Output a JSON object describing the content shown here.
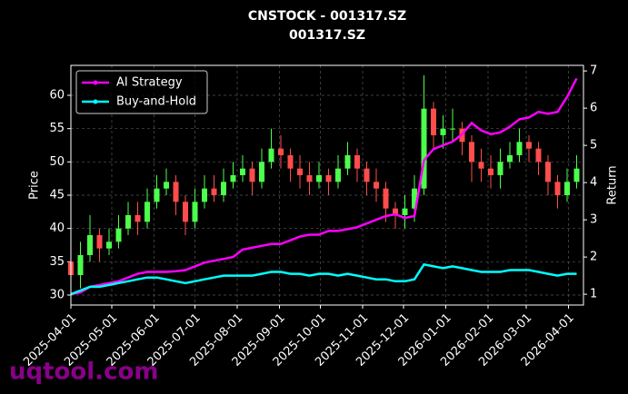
{
  "chart_data": {
    "type": "candlestick",
    "title": "CNSTOCK - 001317.SZ",
    "subtitle": "001317.SZ",
    "ylabel": "Price",
    "y2label": "Return",
    "watermark": "uqtool.com",
    "x": [
      "2025-04-01",
      "2025-04-08",
      "2025-04-15",
      "2025-04-22",
      "2025-04-29",
      "2025-05-06",
      "2025-05-13",
      "2025-05-20",
      "2025-05-27",
      "2025-06-03",
      "2025-06-10",
      "2025-06-17",
      "2025-06-24",
      "2025-07-01",
      "2025-07-08",
      "2025-07-15",
      "2025-07-22",
      "2025-07-29",
      "2025-08-05",
      "2025-08-12",
      "2025-08-19",
      "2025-08-26",
      "2025-09-02",
      "2025-09-09",
      "2025-09-16",
      "2025-09-23",
      "2025-09-30",
      "2025-10-07",
      "2025-10-14",
      "2025-10-21",
      "2025-10-28",
      "2025-11-04",
      "2025-11-11",
      "2025-11-18",
      "2025-11-25",
      "2025-12-02",
      "2025-12-09",
      "2025-12-16",
      "2025-12-23",
      "2025-12-30",
      "2026-01-06",
      "2026-01-13",
      "2026-01-20",
      "2026-01-27",
      "2026-02-03",
      "2026-02-10",
      "2026-02-17",
      "2026-02-24",
      "2026-03-03",
      "2026-03-10",
      "2026-03-17",
      "2026-03-24",
      "2026-03-31",
      "2026-04-07"
    ],
    "open": [
      35,
      33,
      36,
      39,
      37,
      38,
      40,
      42,
      41,
      44,
      46,
      47,
      44,
      41,
      44,
      46,
      45,
      47,
      48,
      49,
      47,
      50,
      52,
      51,
      49,
      48,
      47,
      48,
      47,
      49,
      51,
      49,
      47,
      46,
      43,
      42,
      43,
      46,
      58,
      54,
      55,
      55,
      53,
      50,
      49,
      48,
      50,
      51,
      53,
      52,
      50,
      47,
      45,
      47
    ],
    "high": [
      37,
      38,
      42,
      40,
      40,
      42,
      44,
      44,
      46,
      48,
      49,
      48,
      45,
      46,
      48,
      48,
      49,
      50,
      51,
      50,
      52,
      55,
      54,
      52,
      51,
      50,
      50,
      49,
      51,
      53,
      52,
      50,
      49,
      47,
      44,
      45,
      48,
      63,
      59,
      57,
      58,
      56,
      54,
      52,
      51,
      52,
      53,
      55,
      54,
      53,
      51,
      48,
      49,
      51
    ],
    "low": [
      31,
      31,
      35,
      35,
      36,
      37,
      39,
      39,
      40,
      43,
      45,
      42,
      39,
      40,
      43,
      44,
      44,
      46,
      47,
      45,
      46,
      49,
      49,
      47,
      46,
      45,
      46,
      45,
      46,
      48,
      47,
      45,
      44,
      41,
      40,
      40,
      41,
      45,
      52,
      52,
      53,
      51,
      47,
      47,
      46,
      46,
      49,
      50,
      50,
      48,
      45,
      43,
      44,
      46
    ],
    "close": [
      33,
      36,
      39,
      37,
      38,
      40,
      42,
      41,
      44,
      46,
      47,
      44,
      41,
      44,
      46,
      45,
      47,
      48,
      49,
      47,
      50,
      52,
      51,
      49,
      48,
      47,
      48,
      47,
      49,
      51,
      49,
      47,
      46,
      43,
      42,
      43,
      46,
      58,
      54,
      55,
      55,
      53,
      50,
      49,
      48,
      50,
      51,
      53,
      52,
      50,
      47,
      45,
      47,
      49
    ],
    "up_color": "#4cff4c",
    "down_color": "#ff4c4c",
    "series": [
      {
        "name": "AI Strategy",
        "color": "#ff00ff",
        "axis": "y2",
        "values": [
          1.0,
          1.05,
          1.2,
          1.25,
          1.3,
          1.35,
          1.45,
          1.55,
          1.6,
          1.6,
          1.6,
          1.62,
          1.65,
          1.75,
          1.85,
          1.9,
          1.95,
          2.0,
          2.2,
          2.25,
          2.3,
          2.35,
          2.35,
          2.45,
          2.55,
          2.6,
          2.6,
          2.7,
          2.7,
          2.75,
          2.8,
          2.9,
          3.0,
          3.1,
          3.15,
          3.05,
          3.1,
          4.6,
          4.9,
          5.0,
          5.1,
          5.3,
          5.6,
          5.4,
          5.3,
          5.35,
          5.5,
          5.7,
          5.75,
          5.9,
          5.85,
          5.9,
          6.3,
          6.8
        ]
      },
      {
        "name": "Buy-and-Hold",
        "color": "#00ffff",
        "axis": "y2",
        "values": [
          1.0,
          1.1,
          1.2,
          1.2,
          1.25,
          1.3,
          1.35,
          1.4,
          1.45,
          1.45,
          1.4,
          1.35,
          1.3,
          1.35,
          1.4,
          1.45,
          1.5,
          1.5,
          1.5,
          1.5,
          1.55,
          1.6,
          1.6,
          1.55,
          1.55,
          1.5,
          1.55,
          1.55,
          1.5,
          1.55,
          1.5,
          1.45,
          1.4,
          1.4,
          1.35,
          1.35,
          1.4,
          1.8,
          1.75,
          1.7,
          1.75,
          1.7,
          1.65,
          1.6,
          1.6,
          1.6,
          1.65,
          1.65,
          1.65,
          1.6,
          1.55,
          1.5,
          1.55,
          1.55
        ]
      }
    ],
    "xlim": [
      "2025-04-01",
      "2026-04-12"
    ],
    "xticks": [
      "2025-04-01",
      "2025-05-01",
      "2025-06-01",
      "2025-07-01",
      "2025-08-01",
      "2025-09-01",
      "2025-10-01",
      "2025-11-01",
      "2025-12-01",
      "2026-01-01",
      "2026-02-01",
      "2026-03-01",
      "2026-04-01"
    ],
    "ylim": [
      28.5,
      64.5
    ],
    "yticks": [
      30,
      35,
      40,
      45,
      50,
      55,
      60
    ],
    "y2lim": [
      0.71,
      7.15
    ],
    "y2ticks": [
      1,
      2,
      3,
      4,
      5,
      6,
      7
    ],
    "grid": true,
    "legend": "upper-left"
  }
}
